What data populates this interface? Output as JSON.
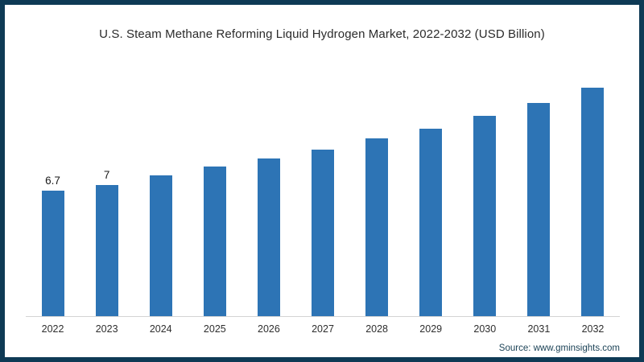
{
  "chart_data": {
    "type": "bar",
    "title": "U.S. Steam Methane Reforming Liquid Hydrogen Market, 2022-2032 (USD Billion)",
    "categories": [
      "2022",
      "2023",
      "2024",
      "2025",
      "2026",
      "2027",
      "2028",
      "2029",
      "2030",
      "2031",
      "2032"
    ],
    "values": [
      6.7,
      7,
      7.5,
      8,
      8.4,
      8.9,
      9.5,
      10,
      10.7,
      11.4,
      12.2
    ],
    "data_labels": [
      "6.7",
      "7",
      "",
      "",
      "",
      "",
      "",
      "",
      "",
      "",
      ""
    ],
    "xlabel": "",
    "ylabel": "",
    "ylim": [
      0,
      13
    ],
    "grid": false,
    "legend": false,
    "y_axis_visible": false
  },
  "colors": {
    "bar": "#2d74b5",
    "frame_border": "#0e3a55",
    "axis_line": "#d3d3d3",
    "title_text": "#2b2b2b",
    "source_text": "#1c4357"
  },
  "source": {
    "label": "Source: www.gminsights.com"
  }
}
